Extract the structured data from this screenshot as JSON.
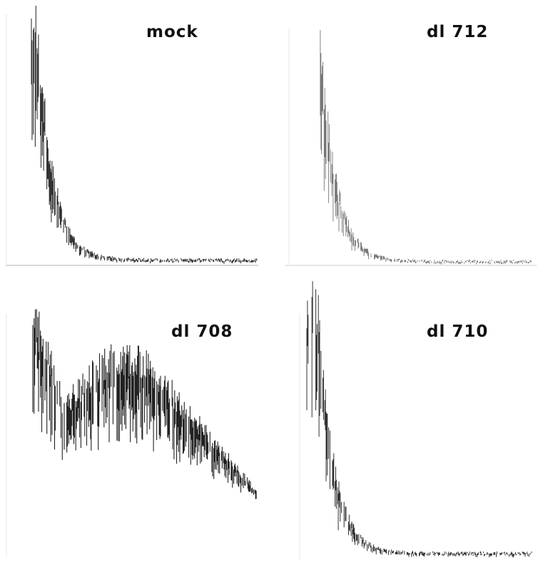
{
  "panels": [
    {
      "label": "mock"
    },
    {
      "label": "dl 712"
    },
    {
      "label": "dl 708"
    },
    {
      "label": "dl 710"
    }
  ]
}
